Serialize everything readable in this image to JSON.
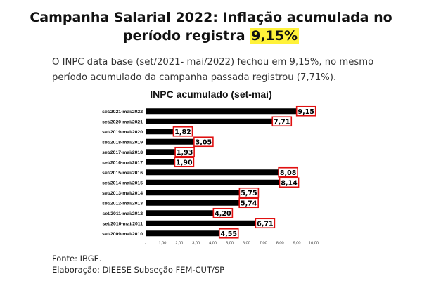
{
  "headline": {
    "line1": "Campanha Salarial 2022: Inflação acumulada no",
    "line2_prefix": "período registra ",
    "line2_highlight": "9,15%"
  },
  "intro": "O INPC data base (set/2021- mai/2022) fechou em 9,15%, no mesmo período acumulado da campanha passada registrou (7,71%).",
  "footer": {
    "source": "Fonte: IBGE.",
    "credit": "Elaboração: DIEESE Subseção FEM-CUT/SP"
  },
  "colors": {
    "bar": "#000000",
    "label_border": "#e01010",
    "highlight": "#fff23a"
  },
  "chart_data": {
    "type": "bar",
    "orientation": "horizontal",
    "title": "INPC acumulado (set-mai)",
    "categories": [
      "set/2021-mai/2022",
      "set/2020-mai/2021",
      "set/2019-mai/2020",
      "set/2018-mai/2019",
      "set/2017-mai/2018",
      "set/2016-mai/2017",
      "set/2015-mai/2016",
      "set/2014-mai/2015",
      "set/2013-mai/2014",
      "set/2012-mai/2013",
      "set/2011-mai/2012",
      "set/2010-mai/2011",
      "set/2009-mai/2010"
    ],
    "values": [
      9.15,
      7.71,
      1.82,
      3.05,
      1.93,
      1.9,
      8.08,
      8.14,
      5.75,
      5.74,
      4.2,
      6.71,
      4.55
    ],
    "value_labels": [
      "9,15",
      "7,71",
      "1,82",
      "3,05",
      "1,93",
      "1,90",
      "8,08",
      "8,14",
      "5,75",
      "5,74",
      "4,20",
      "6,71",
      "4,55"
    ],
    "xlim": [
      0,
      10
    ],
    "x_ticks": [
      0,
      1,
      2,
      3,
      4,
      5,
      6,
      7,
      8,
      9,
      10
    ],
    "x_tick_labels": [
      "-",
      "1,00",
      "2,00",
      "3,00",
      "4,00",
      "5,00",
      "6,00",
      "7,00",
      "8,00",
      "9,00",
      "10,00"
    ],
    "grid": false,
    "legend": "none"
  }
}
